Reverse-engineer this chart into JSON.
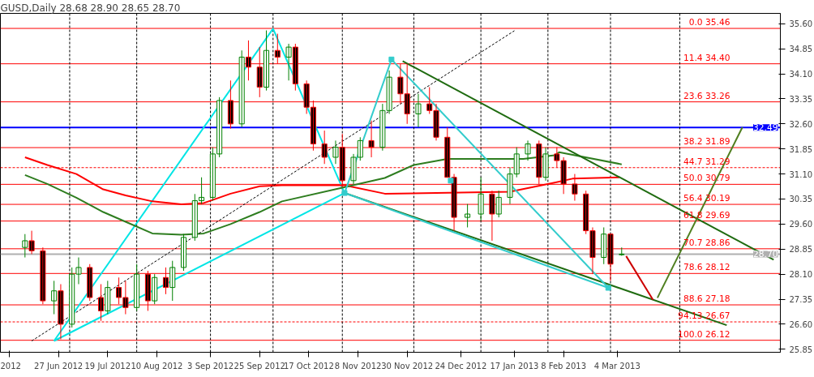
{
  "chart_data": {
    "type": "candlestick",
    "title": "GUSD,Daily  28.68 28.90 28.65 28.70",
    "xlim": [
      "2012-06-01",
      "2013-05-16"
    ],
    "xticks": [
      {
        "value": "2012-06-05",
        "label": "2012"
      },
      {
        "value": "2012-06-27",
        "label": "27 Jun 2012"
      },
      {
        "value": "2012-07-19",
        "label": "19 Jul 2012"
      },
      {
        "value": "2012-08-10",
        "label": "10 Aug 2012"
      },
      {
        "value": "2012-09-03",
        "label": "3 Sep 2012"
      },
      {
        "value": "2012-09-25",
        "label": "25 Sep 2012"
      },
      {
        "value": "2012-10-17",
        "label": "17 Oct 2012"
      },
      {
        "value": "2012-11-08",
        "label": "8 Nov 2012"
      },
      {
        "value": "2012-11-30",
        "label": "30 Nov 2012"
      },
      {
        "value": "2012-12-24",
        "label": "24 Dec 2012"
      },
      {
        "value": "2013-01-17",
        "label": "17 Jan 2013"
      },
      {
        "value": "2013-02-08",
        "label": "8 Feb 2013"
      },
      {
        "value": "2013-03-04",
        "label": "4 Mar 2013"
      }
    ],
    "ylim": [
      25.76,
      35.91
    ],
    "yticks": [
      {
        "value": 25.85,
        "label": "25.85"
      },
      {
        "value": 26.6,
        "label": "26.60"
      },
      {
        "value": 27.35,
        "label": "27.35"
      },
      {
        "value": 28.1,
        "label": "28.10"
      },
      {
        "value": 28.85,
        "label": "28.85"
      },
      {
        "value": 29.6,
        "label": "29.60"
      },
      {
        "value": 30.35,
        "label": "30.35"
      },
      {
        "value": 31.1,
        "label": "31.10"
      },
      {
        "value": 31.85,
        "label": "31.85"
      },
      {
        "value": 32.6,
        "label": "32.60"
      },
      {
        "value": 33.35,
        "label": "33.35"
      },
      {
        "value": 34.1,
        "label": "34.10"
      },
      {
        "value": 34.85,
        "label": "34.85"
      },
      {
        "value": 35.6,
        "label": "35.60"
      }
    ],
    "series": [
      {
        "type": "line",
        "color": "#00e5e5",
        "x": [
          "2012-06-25",
          "2012-10-01",
          "2012-11-02"
        ],
        "values": [
          26.1,
          35.45,
          30.53
        ]
      },
      {
        "type": "line",
        "color": "#ff0000",
        "x": [
          "2012-06-12",
          "2012-06-22",
          "2012-07-05",
          "2012-07-17",
          "2012-07-27",
          "2012-08-08",
          "2012-08-21",
          "2012-08-31",
          "2012-09-12",
          "2012-09-25",
          "2012-10-05",
          "2012-11-02",
          "2012-11-20",
          "2012-12-13",
          "2013-01-15",
          "2013-02-04",
          "2013-02-12",
          "2013-03-05"
        ],
        "values": [
          31.6,
          31.37,
          31.1,
          30.64,
          30.46,
          30.28,
          30.19,
          30.23,
          30.51,
          30.73,
          30.76,
          30.76,
          30.51,
          30.53,
          30.57,
          30.84,
          30.96,
          31.0
        ]
      },
      {
        "type": "line",
        "color": "#2e7d1f",
        "x": [
          "2012-06-12",
          "2012-06-22",
          "2012-07-05",
          "2012-07-17",
          "2012-07-27",
          "2012-08-08",
          "2012-08-21",
          "2012-08-31",
          "2012-09-12",
          "2012-09-25",
          "2012-10-05",
          "2012-11-01",
          "2012-11-20",
          "2012-12-03",
          "2012-12-18",
          "2013-01-21",
          "2013-02-04",
          "2013-02-06",
          "2013-03-06"
        ],
        "values": [
          31.07,
          30.8,
          30.39,
          29.96,
          29.67,
          29.32,
          29.28,
          29.32,
          29.6,
          29.96,
          30.28,
          30.69,
          30.98,
          31.37,
          31.55,
          31.55,
          31.66,
          31.75,
          31.39
        ]
      },
      {
        "type": "line",
        "color": "#00e5e5",
        "x": [
          "2012-06-25",
          "2012-11-02"
        ],
        "values": [
          26.1,
          30.53
        ]
      },
      {
        "type": "line",
        "color": "#000000",
        "line_style": "dashed",
        "x": [
          "2012-06-15",
          "2013-01-17"
        ],
        "values": [
          26.1,
          35.39
        ]
      },
      {
        "type": "line",
        "color": "#1f6b10",
        "x": [
          "2012-11-28",
          "2013-05-13"
        ],
        "values": [
          34.48,
          28.53
        ]
      },
      {
        "type": "line",
        "color": "#1f6b10",
        "x": [
          "2012-11-02",
          "2013-04-22"
        ],
        "values": [
          30.53,
          26.57
        ]
      },
      {
        "type": "line",
        "color": "#33cccc",
        "x": [
          "2012-11-02",
          "2012-11-23"
        ],
        "values": [
          30.53,
          34.53
        ]
      },
      {
        "type": "line",
        "color": "#33cccc",
        "x": [
          "2012-11-23",
          "2013-02-28"
        ],
        "values": [
          34.53,
          27.69
        ]
      },
      {
        "type": "line",
        "color": "#33cccc",
        "x": [
          "2012-11-02",
          "2013-02-28"
        ],
        "values": [
          30.53,
          27.69
        ]
      },
      {
        "type": "scatter",
        "color": "#33cccc",
        "marker": "square",
        "x": [
          "2012-11-02",
          "2012-11-23",
          "2012-12-19T12:00",
          "2013-02-28"
        ],
        "values": [
          30.53,
          34.53,
          30.9,
          27.69
        ]
      },
      {
        "type": "line",
        "color": "#cc0000",
        "x": [
          "2013-03-08",
          "2013-03-20"
        ],
        "values": [
          28.64,
          27.33
        ]
      },
      {
        "type": "line",
        "color": "#4f7f1f",
        "x": [
          "2013-03-22",
          "2013-04-29"
        ],
        "values": [
          27.39,
          32.5
        ]
      },
      {
        "x": [
          "2012-06-12",
          "2012-06-15",
          "2012-06-20",
          "2012-06-25",
          "2012-06-28",
          "2012-07-03",
          "2012-07-06",
          "2012-07-11",
          "2012-07-16",
          "2012-07-19",
          "2012-07-24",
          "2012-07-27",
          "2012-08-01",
          "2012-08-06",
          "2012-08-09",
          "2012-08-14",
          "2012-08-17",
          "2012-08-22",
          "2012-08-27",
          "2012-08-30",
          "2012-09-04",
          "2012-09-07",
          "2012-09-12",
          "2012-09-17",
          "2012-09-20",
          "2012-09-25",
          "2012-09-28",
          "2012-10-03",
          "2012-10-08",
          "2012-10-11",
          "2012-10-16",
          "2012-10-19",
          "2012-10-24",
          "2012-10-29",
          "2012-11-01",
          "2012-11-06",
          "2012-11-09",
          "2012-11-14",
          "2012-11-19",
          "2012-11-22",
          "2012-11-27",
          "2012-11-30",
          "2012-12-05",
          "2012-12-10",
          "2012-12-13",
          "2012-12-18",
          "2012-12-21",
          "2012-12-27",
          "2013-01-02",
          "2013-01-07",
          "2013-01-10",
          "2013-01-15",
          "2013-01-18",
          "2013-01-23",
          "2013-01-28",
          "2013-01-31",
          "2013-02-05",
          "2013-02-08",
          "2013-02-13",
          "2013-02-18",
          "2013-02-21",
          "2013-02-26",
          "2013-03-01",
          "2013-03-06"
        ],
        "ohlc": [
          [
            28.9,
            29.3,
            28.6,
            29.1
          ],
          [
            29.1,
            29.4,
            28.7,
            28.8
          ],
          [
            28.8,
            28.9,
            27.2,
            27.3
          ],
          [
            27.3,
            27.9,
            26.9,
            27.6
          ],
          [
            27.6,
            27.8,
            26.15,
            26.6
          ],
          [
            26.6,
            28.3,
            26.5,
            28.1
          ],
          [
            28.1,
            28.6,
            27.8,
            28.3
          ],
          [
            28.3,
            28.4,
            27.3,
            27.4
          ],
          [
            27.4,
            27.8,
            26.7,
            27.0
          ],
          [
            27.0,
            27.9,
            26.9,
            27.7
          ],
          [
            27.7,
            28.0,
            27.2,
            27.4
          ],
          [
            27.4,
            27.9,
            26.9,
            27.1
          ],
          [
            27.1,
            28.4,
            27.0,
            28.1
          ],
          [
            28.1,
            28.2,
            27.0,
            27.3
          ],
          [
            27.3,
            28.1,
            27.2,
            28.0
          ],
          [
            28.0,
            28.3,
            27.5,
            27.7
          ],
          [
            27.7,
            28.5,
            27.3,
            28.3
          ],
          [
            28.3,
            29.3,
            28.2,
            29.2
          ],
          [
            29.2,
            30.5,
            29.1,
            30.3
          ],
          [
            30.3,
            31.0,
            30.2,
            30.4
          ],
          [
            30.4,
            31.9,
            30.3,
            31.7
          ],
          [
            31.7,
            33.4,
            31.6,
            33.3
          ],
          [
            33.3,
            33.9,
            32.46,
            32.6
          ],
          [
            32.6,
            34.8,
            32.5,
            34.6
          ],
          [
            34.6,
            35.1,
            33.9,
            34.3
          ],
          [
            34.3,
            34.9,
            33.4,
            33.7
          ],
          [
            33.7,
            35.4,
            33.6,
            34.8
          ],
          [
            34.8,
            35.3,
            34.4,
            34.6
          ],
          [
            34.6,
            35.0,
            33.9,
            34.9
          ],
          [
            34.9,
            35.0,
            33.6,
            33.8
          ],
          [
            33.8,
            33.9,
            32.9,
            33.1
          ],
          [
            33.1,
            33.3,
            31.8,
            32.0
          ],
          [
            32.0,
            32.4,
            31.4,
            31.6
          ],
          [
            31.6,
            32.1,
            31.4,
            31.9
          ],
          [
            31.9,
            32.3,
            30.7,
            30.9
          ],
          [
            30.9,
            31.7,
            30.8,
            31.6
          ],
          [
            31.6,
            32.2,
            31.5,
            32.1
          ],
          [
            32.1,
            32.7,
            31.6,
            31.9
          ],
          [
            31.9,
            33.2,
            31.8,
            33.0
          ],
          [
            33.0,
            34.2,
            32.9,
            34.0
          ],
          [
            34.0,
            34.4,
            33.2,
            33.5
          ],
          [
            33.5,
            34.4,
            32.6,
            32.9
          ],
          [
            32.9,
            33.5,
            32.5,
            33.2
          ],
          [
            33.2,
            33.7,
            32.9,
            33.0
          ],
          [
            33.0,
            33.2,
            32.1,
            32.2
          ],
          [
            32.2,
            32.5,
            31.0,
            31.0
          ],
          [
            31.0,
            31.1,
            29.4,
            29.8
          ],
          [
            29.8,
            30.2,
            29.5,
            29.9
          ],
          [
            29.9,
            31.0,
            29.7,
            30.5
          ],
          [
            30.5,
            30.6,
            29.1,
            29.9
          ],
          [
            29.9,
            30.6,
            29.8,
            30.4
          ],
          [
            30.4,
            31.3,
            30.2,
            31.1
          ],
          [
            31.1,
            31.9,
            31.0,
            31.7
          ],
          [
            31.7,
            32.1,
            31.5,
            32.0
          ],
          [
            32.0,
            32.1,
            30.8,
            31.0
          ],
          [
            31.0,
            31.9,
            30.9,
            31.7
          ],
          [
            31.7,
            31.9,
            31.3,
            31.5
          ],
          [
            31.5,
            31.6,
            30.5,
            30.8
          ],
          [
            30.8,
            31.1,
            30.3,
            30.5
          ],
          [
            30.5,
            30.6,
            29.3,
            29.4
          ],
          [
            29.4,
            29.5,
            28.1,
            28.6
          ],
          [
            28.6,
            29.5,
            28.4,
            29.3
          ],
          [
            29.3,
            29.3,
            27.9,
            28.4
          ],
          [
            28.68,
            28.9,
            28.65,
            28.7
          ]
        ],
        "colors": [
          "#008000",
          "#ff0000",
          "#ff0000",
          "#008000",
          "#ff0000",
          "#008000",
          "#008000",
          "#ff0000",
          "#ff0000",
          "#008000",
          "#ff0000",
          "#ff0000",
          "#008000",
          "#ff0000",
          "#008000",
          "#ff0000",
          "#008000",
          "#008000",
          "#008000",
          "#008000",
          "#008000",
          "#008000",
          "#ff0000",
          "#008000",
          "#ff0000",
          "#ff0000",
          "#008000",
          "#ff0000",
          "#008000",
          "#ff0000",
          "#ff0000",
          "#ff0000",
          "#ff0000",
          "#008000",
          "#ff0000",
          "#008000",
          "#008000",
          "#ff0000",
          "#008000",
          "#008000",
          "#ff0000",
          "#ff0000",
          "#008000",
          "#ff0000",
          "#ff0000",
          "#ff0000",
          "#ff0000",
          "#008000",
          "#008000",
          "#ff0000",
          "#008000",
          "#008000",
          "#008000",
          "#008000",
          "#ff0000",
          "#008000",
          "#ff0000",
          "#ff0000",
          "#ff0000",
          "#ff0000",
          "#ff0000",
          "#008000",
          "#ff0000",
          "#008000"
        ]
      }
    ],
    "ref_lines": [
      {
        "axis": "y",
        "value": 35.46,
        "label": "0.0 35.46",
        "color": "#ff0000",
        "line_style": "solid"
      },
      {
        "axis": "y",
        "value": 34.4,
        "label": "11.4 34.40",
        "color": "#ff0000",
        "line_style": "solid"
      },
      {
        "axis": "y",
        "value": 33.26,
        "label": "23.6 33.26",
        "color": "#ff0000",
        "line_style": "solid"
      },
      {
        "axis": "y",
        "value": 31.89,
        "label": "38.2 31.89",
        "color": "#ff0000",
        "line_style": "solid"
      },
      {
        "axis": "y",
        "value": 31.29,
        "label": "44.7 31.29",
        "color": "#ff0000",
        "line_style": "dashed"
      },
      {
        "axis": "y",
        "value": 30.79,
        "label": "50.0 30.79",
        "color": "#ff0000",
        "line_style": "solid"
      },
      {
        "axis": "y",
        "value": 30.19,
        "label": "56.4 30.19",
        "color": "#ff0000",
        "line_style": "solid"
      },
      {
        "axis": "y",
        "value": 29.69,
        "label": "61.8 29.69",
        "color": "#ff0000",
        "line_style": "solid"
      },
      {
        "axis": "y",
        "value": 28.86,
        "label": "70.7 28.86",
        "color": "#ff0000",
        "line_style": "solid"
      },
      {
        "axis": "y",
        "value": 28.12,
        "label": "78.6 28.12",
        "color": "#ff0000",
        "line_style": "solid"
      },
      {
        "axis": "y",
        "value": 27.18,
        "label": "88.6 27.18",
        "color": "#ff0000",
        "line_style": "solid"
      },
      {
        "axis": "y",
        "value": 26.67,
        "label": "94.13 26.67",
        "color": "#ff0000",
        "line_style": "dashed"
      },
      {
        "axis": "y",
        "value": 26.12,
        "label": "100.0 26.12",
        "color": "#ff0000",
        "line_style": "solid"
      },
      {
        "axis": "y",
        "value": 32.49,
        "label": "32.49",
        "color": "#0000ff",
        "line_style": "solid"
      },
      {
        "axis": "y",
        "value": 28.7,
        "label": "28.70",
        "color": "#b0b0b0",
        "line_style": "solid"
      },
      {
        "axis": "x",
        "value": "2012-07-02",
        "color": "#000000",
        "line_style": "dashed"
      },
      {
        "axis": "x",
        "value": "2012-08-01",
        "color": "#000000",
        "line_style": "dashed"
      },
      {
        "axis": "x",
        "value": "2012-09-03",
        "color": "#000000",
        "line_style": "dashed"
      },
      {
        "axis": "x",
        "value": "2012-10-01",
        "color": "#000000",
        "line_style": "dashed"
      },
      {
        "axis": "x",
        "value": "2012-11-01",
        "color": "#000000",
        "line_style": "dashed"
      },
      {
        "axis": "x",
        "value": "2012-12-03",
        "color": "#000000",
        "line_style": "dashed"
      },
      {
        "axis": "x",
        "value": "2013-01-02",
        "color": "#000000",
        "line_style": "dashed"
      },
      {
        "axis": "x",
        "value": "2013-02-01",
        "color": "#000000",
        "line_style": "dashed"
      },
      {
        "axis": "x",
        "value": "2013-03-01",
        "color": "#000000",
        "line_style": "dashed"
      },
      {
        "axis": "x",
        "value": "2013-04-01",
        "color": "#000000",
        "line_style": "dashed"
      }
    ]
  }
}
